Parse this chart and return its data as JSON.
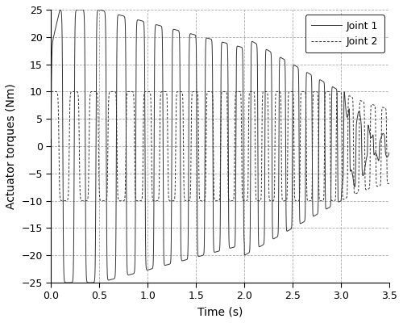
{
  "title": "",
  "xlabel": "Time (s)",
  "ylabel": "Actuator torques (Nm)",
  "xlim": [
    0,
    3.5
  ],
  "ylim": [
    -25,
    25
  ],
  "xticks": [
    0,
    0.5,
    1.0,
    1.5,
    2.0,
    2.5,
    3.0,
    3.5
  ],
  "yticks": [
    -25,
    -20,
    -15,
    -10,
    -5,
    0,
    5,
    10,
    15,
    20,
    25
  ],
  "legend_labels": [
    "Joint 1",
    "Joint 2"
  ],
  "line1_color": "#333333",
  "line2_color": "#333333",
  "grid_color": "#aaaaaa",
  "figsize": [
    5.0,
    4.0
  ],
  "dpi": 100,
  "dt": 0.0005,
  "t_end": 3.5
}
